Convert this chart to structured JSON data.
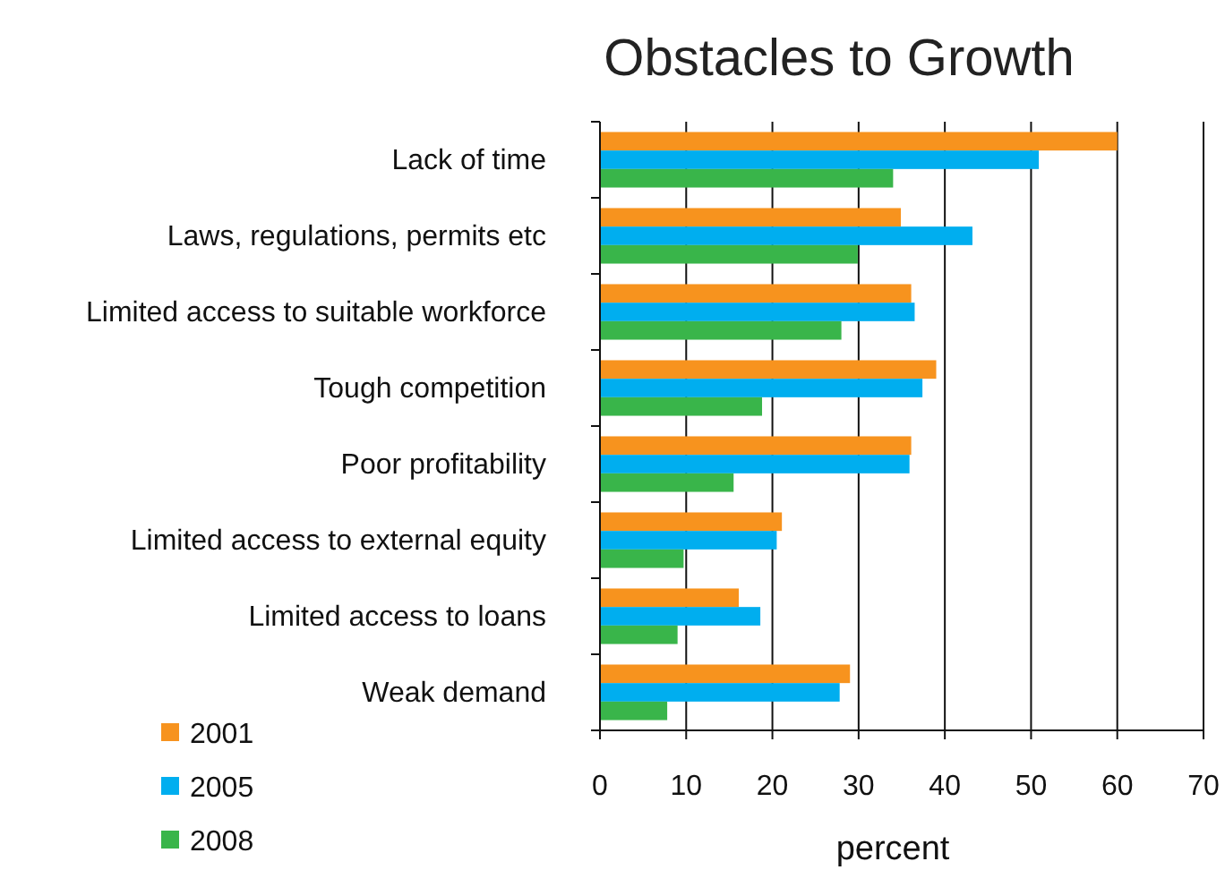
{
  "chart_data": {
    "type": "bar",
    "orientation": "horizontal",
    "title": "Obstacles to Growth",
    "xlabel": "percent",
    "categories": [
      "Lack of time",
      "Laws, regulations, permits etc",
      "Limited access to suitable workforce",
      "Tough competition",
      "Poor profitability",
      "Limited access to external equity",
      "Limited access to loans",
      "Weak demand"
    ],
    "series": [
      {
        "name": "2001",
        "color": "#f7931e",
        "values": [
          60,
          34.9,
          36.1,
          39,
          36.1,
          21.1,
          16.1,
          29
        ]
      },
      {
        "name": "2005",
        "color": "#00aeef",
        "values": [
          50.9,
          43.2,
          36.5,
          37.4,
          35.9,
          20.5,
          18.6,
          27.8
        ]
      },
      {
        "name": "2008",
        "color": "#39b54a",
        "values": [
          34,
          29.9,
          28,
          18.8,
          15.5,
          9.7,
          9,
          7.8
        ]
      }
    ],
    "xlim": [
      0,
      70
    ],
    "xticks": [
      0,
      10,
      20,
      30,
      40,
      50,
      60,
      70
    ],
    "grid": "x",
    "legend": "bottom left"
  }
}
